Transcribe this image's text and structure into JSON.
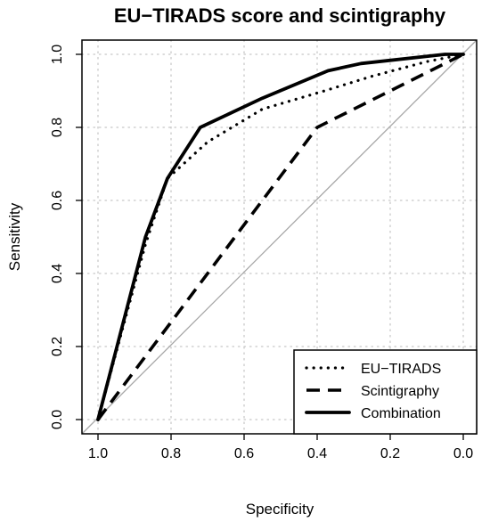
{
  "chart_data": {
    "type": "line",
    "title": "EU−TIRADS score and scintigraphy",
    "xlabel": "Specificity",
    "ylabel": "Sensitivity",
    "xlim": [
      1.0,
      0.0
    ],
    "ylim": [
      0.0,
      1.0
    ],
    "x_reversed": true,
    "xticks": [
      "1.0",
      "0.8",
      "0.6",
      "0.4",
      "0.2",
      "0.0"
    ],
    "yticks": [
      "0.0",
      "0.2",
      "0.4",
      "0.6",
      "0.8",
      "1.0"
    ],
    "grid": true,
    "legend_position": "bottom-right",
    "reference_line": "diagonal",
    "series": [
      {
        "name": "EU−TIRADS",
        "line_style": "dotted",
        "points": [
          [
            1.0,
            0.0
          ],
          [
            0.87,
            0.48
          ],
          [
            0.81,
            0.66
          ],
          [
            0.7,
            0.76
          ],
          [
            0.55,
            0.85
          ],
          [
            0.38,
            0.9
          ],
          [
            0.25,
            0.94
          ],
          [
            0.1,
            0.98
          ],
          [
            0.0,
            1.0
          ]
        ]
      },
      {
        "name": "Scintigraphy",
        "line_style": "dashed",
        "points": [
          [
            1.0,
            0.0
          ],
          [
            0.4,
            0.8
          ],
          [
            0.0,
            1.0
          ]
        ]
      },
      {
        "name": "Combination",
        "line_style": "solid",
        "points": [
          [
            1.0,
            0.0
          ],
          [
            0.87,
            0.5
          ],
          [
            0.81,
            0.66
          ],
          [
            0.72,
            0.8
          ],
          [
            0.55,
            0.88
          ],
          [
            0.37,
            0.955
          ],
          [
            0.28,
            0.975
          ],
          [
            0.05,
            1.0
          ],
          [
            0.0,
            1.0
          ]
        ]
      }
    ]
  }
}
